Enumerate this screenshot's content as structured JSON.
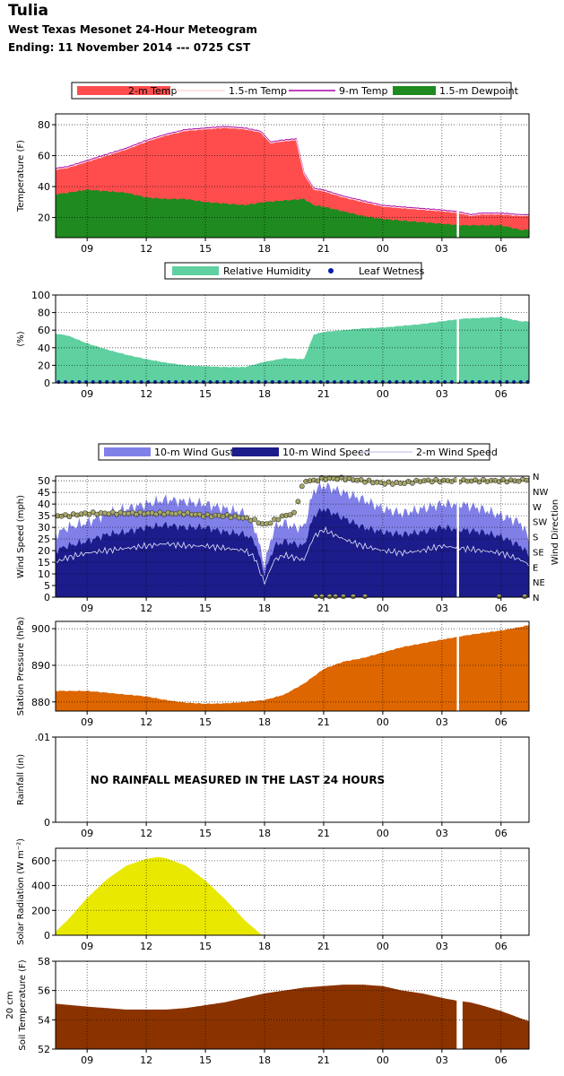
{
  "header": {
    "station": "Tulia",
    "title": "West Texas Mesonet 24-Hour Meteogram",
    "ending": "Ending: 11 November 2014 --- 0725 CST"
  },
  "x_ticks": [
    "09",
    "12",
    "15",
    "18",
    "21",
    "00",
    "03",
    "06"
  ],
  "x_range_hours": [
    7.4,
    31.42
  ],
  "x_tick_hours": [
    9,
    12,
    15,
    18,
    21,
    24,
    27,
    30
  ],
  "data_gap_hour": 27.8,
  "colors": {
    "temp2m": "#ff4d4d",
    "temp15m": "#ffd8d8",
    "temp9m": "#aa00aa",
    "dewpoint": "#1f8a1f",
    "rh": "#5fd0a0",
    "leaf": "#0a1aa8",
    "gust": "#8080e8",
    "wspd10": "#1c1c8c",
    "wspd2": "#e8e8ff",
    "wdir": "#a8a868",
    "pressure": "#dd6600",
    "rain_text": "#228b22",
    "solar": "#e8e800",
    "soil": "#8b3300"
  },
  "chart_data": [
    {
      "id": "temperature",
      "type": "area",
      "legend": [
        "2-m Temp",
        "1.5-m Temp",
        "9-m Temp",
        "1.5-m Dewpoint"
      ],
      "ylabel": "Temperature (F)",
      "ylim": [
        7,
        87
      ],
      "yticks": [
        20,
        40,
        60,
        80
      ],
      "grid": true,
      "series": [
        {
          "name": "2-m Temp",
          "x": [
            7.4,
            8,
            9,
            10,
            11,
            12,
            13,
            14,
            15,
            16,
            17,
            17.8,
            18.3,
            18.8,
            19.6,
            20,
            20.5,
            21,
            21.5,
            22,
            23,
            24,
            25,
            26,
            27,
            27.8,
            28.5,
            29,
            30,
            31,
            31.42
          ],
          "values": [
            51,
            52,
            56,
            60,
            64,
            69,
            73,
            76,
            77,
            78,
            77,
            75,
            68,
            69,
            70,
            48,
            38,
            37,
            35,
            33,
            30,
            27,
            26,
            25,
            24,
            23,
            21,
            22,
            22,
            21,
            21
          ]
        },
        {
          "name": "1.5-m Dewpoint",
          "x": [
            7.4,
            8,
            9,
            10,
            11,
            12,
            13,
            14,
            15,
            16,
            17,
            18,
            19,
            20,
            20.5,
            21,
            22,
            23,
            24,
            25,
            26,
            27,
            28,
            29,
            30,
            31,
            31.42
          ],
          "values": [
            35,
            36,
            38,
            37,
            36,
            33,
            32,
            32,
            30,
            29,
            28,
            30,
            31,
            32,
            28,
            27,
            24,
            21,
            19,
            18,
            17,
            16,
            15,
            15,
            15,
            12,
            12
          ]
        }
      ]
    },
    {
      "id": "humidity",
      "type": "area",
      "legend": [
        "Relative Humidity",
        "Leaf Wetness"
      ],
      "ylabel": "(%)",
      "ylim": [
        0,
        100
      ],
      "yticks": [
        0,
        20,
        40,
        60,
        80,
        100
      ],
      "grid": true,
      "series": [
        {
          "name": "Relative Humidity",
          "x": [
            7.4,
            8,
            9,
            10,
            11,
            12,
            13,
            14,
            15,
            16,
            17,
            18,
            19,
            20,
            20.5,
            21,
            22,
            23,
            24,
            25,
            26,
            27,
            28,
            29,
            30,
            31,
            31.42
          ],
          "values": [
            56,
            54,
            45,
            38,
            32,
            27,
            23,
            20,
            19,
            18,
            18,
            24,
            28,
            27,
            55,
            58,
            60,
            62,
            63,
            65,
            67,
            70,
            73,
            74,
            75,
            70,
            70
          ]
        },
        {
          "name": "Leaf Wetness",
          "x": [
            7.4,
            9,
            12,
            15,
            18,
            21,
            24,
            27,
            30,
            31.42
          ],
          "values": [
            1,
            1,
            1,
            1,
            1,
            1,
            1,
            1,
            1,
            1
          ]
        }
      ]
    },
    {
      "id": "wind",
      "type": "area",
      "legend": [
        "10-m Wind Gust",
        "10-m Wind Speed",
        "2-m Wind Speed"
      ],
      "ylabel": "Wind Speed (mph)",
      "ylabel_right": "Wind Direction",
      "ylim": [
        0,
        52
      ],
      "yticks": [
        0,
        5,
        10,
        15,
        20,
        25,
        30,
        35,
        40,
        45,
        50
      ],
      "dir_labels": [
        "N",
        "NE",
        "E",
        "SE",
        "S",
        "SW",
        "W",
        "NW",
        "N"
      ],
      "grid": true,
      "series": [
        {
          "name": "10-m Wind Gust",
          "x": [
            7.4,
            8,
            9,
            10,
            11,
            12,
            13,
            14,
            15,
            16,
            17,
            17.5,
            18,
            18.5,
            19,
            19.5,
            20,
            20.5,
            21,
            22,
            23,
            24,
            25,
            26,
            27,
            28,
            29,
            30,
            31,
            31.42
          ],
          "values": [
            27,
            30,
            32,
            36,
            38,
            40,
            42,
            41,
            40,
            38,
            36,
            30,
            14,
            30,
            32,
            30,
            30,
            46,
            48,
            45,
            42,
            38,
            36,
            38,
            40,
            40,
            38,
            35,
            32,
            25
          ]
        },
        {
          "name": "10-m Wind Speed",
          "x": [
            7.4,
            8,
            9,
            10,
            11,
            12,
            13,
            14,
            15,
            16,
            17,
            17.5,
            18,
            18.5,
            19,
            19.5,
            20,
            20.5,
            21,
            22,
            23,
            24,
            25,
            26,
            27,
            28,
            29,
            30,
            31,
            31.42
          ],
          "values": [
            20,
            22,
            24,
            27,
            28,
            30,
            31,
            30,
            30,
            28,
            27,
            24,
            10,
            22,
            24,
            23,
            22,
            35,
            38,
            34,
            30,
            28,
            27,
            28,
            30,
            29,
            28,
            26,
            22,
            18
          ]
        },
        {
          "name": "2-m Wind Speed",
          "x": [
            7.4,
            8,
            9,
            10,
            11,
            12,
            13,
            14,
            15,
            16,
            17,
            17.5,
            18,
            18.5,
            19,
            19.5,
            20,
            20.5,
            21,
            22,
            23,
            24,
            25,
            26,
            27,
            28,
            29,
            30,
            31,
            31.42
          ],
          "values": [
            15,
            17,
            19,
            20,
            21,
            22,
            23,
            22,
            22,
            21,
            20,
            17,
            6,
            16,
            18,
            17,
            16,
            26,
            29,
            25,
            22,
            20,
            19,
            20,
            22,
            21,
            20,
            19,
            16,
            14
          ]
        },
        {
          "name": "Wind Direction",
          "x": [
            7.4,
            8,
            9,
            10,
            11,
            12,
            13,
            14,
            15,
            16,
            17,
            17.5,
            18,
            18.5,
            19,
            19.5,
            20,
            20.5,
            21,
            22,
            23,
            24,
            25,
            26,
            27,
            28,
            29,
            30,
            31,
            31.42
          ],
          "values": [
            35,
            35,
            36,
            36,
            36,
            36,
            36,
            36,
            35,
            35,
            34,
            33,
            31,
            33,
            35,
            36,
            50,
            50,
            51,
            51,
            50,
            49,
            49,
            50,
            50,
            50,
            50,
            50,
            50,
            51
          ]
        }
      ]
    },
    {
      "id": "pressure",
      "type": "area",
      "ylabel": "Station Pressure (hPa)",
      "ylim": [
        877.5,
        902
      ],
      "yticks": [
        880,
        890,
        900
      ],
      "grid": true,
      "series": [
        {
          "name": "Station Pressure",
          "x": [
            7.4,
            8,
            9,
            10,
            11,
            12,
            13,
            14,
            15,
            16,
            17,
            18,
            19,
            20,
            20.5,
            21,
            22,
            23,
            24,
            25,
            26,
            27,
            28,
            29,
            30,
            31,
            31.42
          ],
          "values": [
            883,
            883,
            883,
            882.5,
            882,
            881.5,
            880.5,
            879.8,
            879.5,
            879.6,
            880,
            880.5,
            882,
            885,
            887,
            889,
            891,
            892,
            893.5,
            895,
            896,
            897,
            898,
            898.8,
            899.5,
            900.5,
            901
          ]
        }
      ]
    },
    {
      "id": "rainfall",
      "type": "area",
      "ylabel": "Rainfall (in)",
      "ylim": [
        0,
        0.01
      ],
      "yticks_labels": [
        ".01",
        "0"
      ],
      "grid": true,
      "message": "NO RAINFALL MEASURED IN THE LAST 24 HOURS",
      "series": []
    },
    {
      "id": "solar",
      "type": "area",
      "ylabel": "Solar Radiation (W m⁻²)",
      "ylim": [
        0,
        700
      ],
      "yticks": [
        0,
        200,
        400,
        600
      ],
      "grid": true,
      "series": [
        {
          "name": "Solar Radiation",
          "x": [
            7.4,
            8,
            9,
            10,
            11,
            12,
            12.6,
            13,
            14,
            15,
            16,
            17,
            17.8,
            18,
            31.42
          ],
          "values": [
            30,
            120,
            300,
            450,
            560,
            615,
            630,
            620,
            560,
            440,
            290,
            120,
            10,
            0,
            0
          ]
        }
      ]
    },
    {
      "id": "soil",
      "type": "area",
      "ylabel": "20 cm Soil Temperature (F)",
      "ylim": [
        52,
        58
      ],
      "yticks": [
        52,
        54,
        56,
        58
      ],
      "grid": true,
      "series": [
        {
          "name": "20 cm Soil Temperature",
          "x": [
            7.4,
            9,
            10,
            11,
            12,
            13,
            14,
            15,
            16,
            17,
            18,
            19,
            20,
            21,
            22,
            23,
            24,
            25,
            26,
            27,
            27.8,
            28.4,
            29,
            30,
            31,
            31.42
          ],
          "values": [
            55.1,
            54.9,
            54.8,
            54.7,
            54.7,
            54.7,
            54.8,
            55.0,
            55.2,
            55.5,
            55.8,
            56.0,
            56.2,
            56.3,
            56.4,
            56.4,
            56.3,
            56.0,
            55.8,
            55.5,
            55.3,
            55.2,
            55.0,
            54.6,
            54.1,
            53.9
          ]
        }
      ]
    }
  ]
}
